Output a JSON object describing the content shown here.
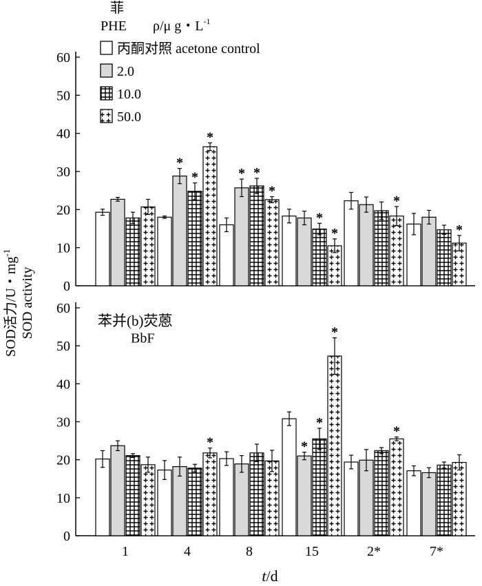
{
  "y_axis_label_zh": "SOD活力/U・mg",
  "y_axis_label_sup": "-1",
  "y_axis_label_en": "SOD activity",
  "x_axis_label_var": "t",
  "x_axis_label_unit": "/d",
  "significance_mark": "*",
  "legend": {
    "compound_zh": "菲",
    "compound_en": "PHE",
    "unit_label": "ρ/μ g・L",
    "unit_sup": "-1",
    "entries": [
      "丙酮对照 acetone control",
      "2.0",
      "10.0",
      "50.0"
    ]
  },
  "chart_data": [
    {
      "type": "bar",
      "panel_label_zh": "",
      "panel_label_en": "",
      "categories": [
        "1",
        "4",
        "8",
        "15",
        "2*",
        "7*"
      ],
      "ylim": [
        0,
        60
      ],
      "yticks": [
        0,
        10,
        20,
        30,
        40,
        50,
        60
      ],
      "series": [
        {
          "name": "丙酮对照 acetone control",
          "pattern": "white",
          "values": [
            19.3,
            18.0,
            16.0,
            18.3,
            22.3,
            16.2
          ],
          "errors": [
            0.8,
            0.3,
            1.8,
            1.8,
            2.2,
            2.8
          ],
          "sig": [
            false,
            false,
            false,
            false,
            false,
            false
          ]
        },
        {
          "name": "2.0",
          "pattern": "gray",
          "values": [
            22.7,
            28.8,
            25.7,
            17.8,
            21.3,
            18.0
          ],
          "errors": [
            0.5,
            2.0,
            2.3,
            1.8,
            2.0,
            1.8
          ],
          "sig": [
            false,
            true,
            true,
            false,
            false,
            false
          ]
        },
        {
          "name": "10.0",
          "pattern": "grid",
          "values": [
            17.8,
            24.8,
            26.2,
            14.9,
            19.7,
            14.7
          ],
          "errors": [
            1.5,
            2.2,
            2.0,
            1.5,
            2.3,
            1.2
          ],
          "sig": [
            false,
            true,
            true,
            true,
            false,
            false
          ]
        },
        {
          "name": "50.0",
          "pattern": "cross",
          "values": [
            20.7,
            36.5,
            22.6,
            10.5,
            18.3,
            11.2
          ],
          "errors": [
            2.0,
            1.0,
            0.8,
            1.8,
            2.5,
            2.0
          ],
          "sig": [
            false,
            true,
            true,
            true,
            true,
            true
          ]
        }
      ]
    },
    {
      "type": "bar",
      "panel_label_zh": "苯并(b)荧蒽",
      "panel_label_en": "BbF",
      "categories": [
        "1",
        "4",
        "8",
        "15",
        "2*",
        "7*"
      ],
      "ylim": [
        0,
        60
      ],
      "yticks": [
        0,
        10,
        20,
        30,
        40,
        50,
        60
      ],
      "series": [
        {
          "name": "丙酮对照 acetone control",
          "pattern": "white",
          "values": [
            20.2,
            17.3,
            20.3,
            30.8,
            19.4,
            17.1
          ],
          "errors": [
            2.2,
            2.5,
            1.8,
            1.8,
            1.8,
            1.3
          ],
          "sig": [
            false,
            false,
            false,
            false,
            false,
            false
          ]
        },
        {
          "name": "2.0",
          "pattern": "gray",
          "values": [
            23.7,
            18.2,
            18.9,
            21.0,
            19.9,
            16.6
          ],
          "errors": [
            1.3,
            2.5,
            2.2,
            1.0,
            2.8,
            1.3
          ],
          "sig": [
            false,
            false,
            false,
            true,
            false,
            false
          ]
        },
        {
          "name": "10.0",
          "pattern": "grid",
          "values": [
            21.1,
            17.8,
            21.8,
            25.5,
            22.4,
            18.6
          ],
          "errors": [
            0.5,
            1.0,
            2.3,
            2.8,
            0.8,
            0.8
          ],
          "sig": [
            false,
            false,
            false,
            true,
            false,
            false
          ]
        },
        {
          "name": "50.0",
          "pattern": "cross",
          "values": [
            18.7,
            21.8,
            19.7,
            47.3,
            25.5,
            19.3
          ],
          "errors": [
            2.0,
            1.3,
            2.8,
            4.8,
            0.5,
            2.0
          ],
          "sig": [
            false,
            true,
            false,
            true,
            true,
            false
          ]
        }
      ]
    }
  ]
}
